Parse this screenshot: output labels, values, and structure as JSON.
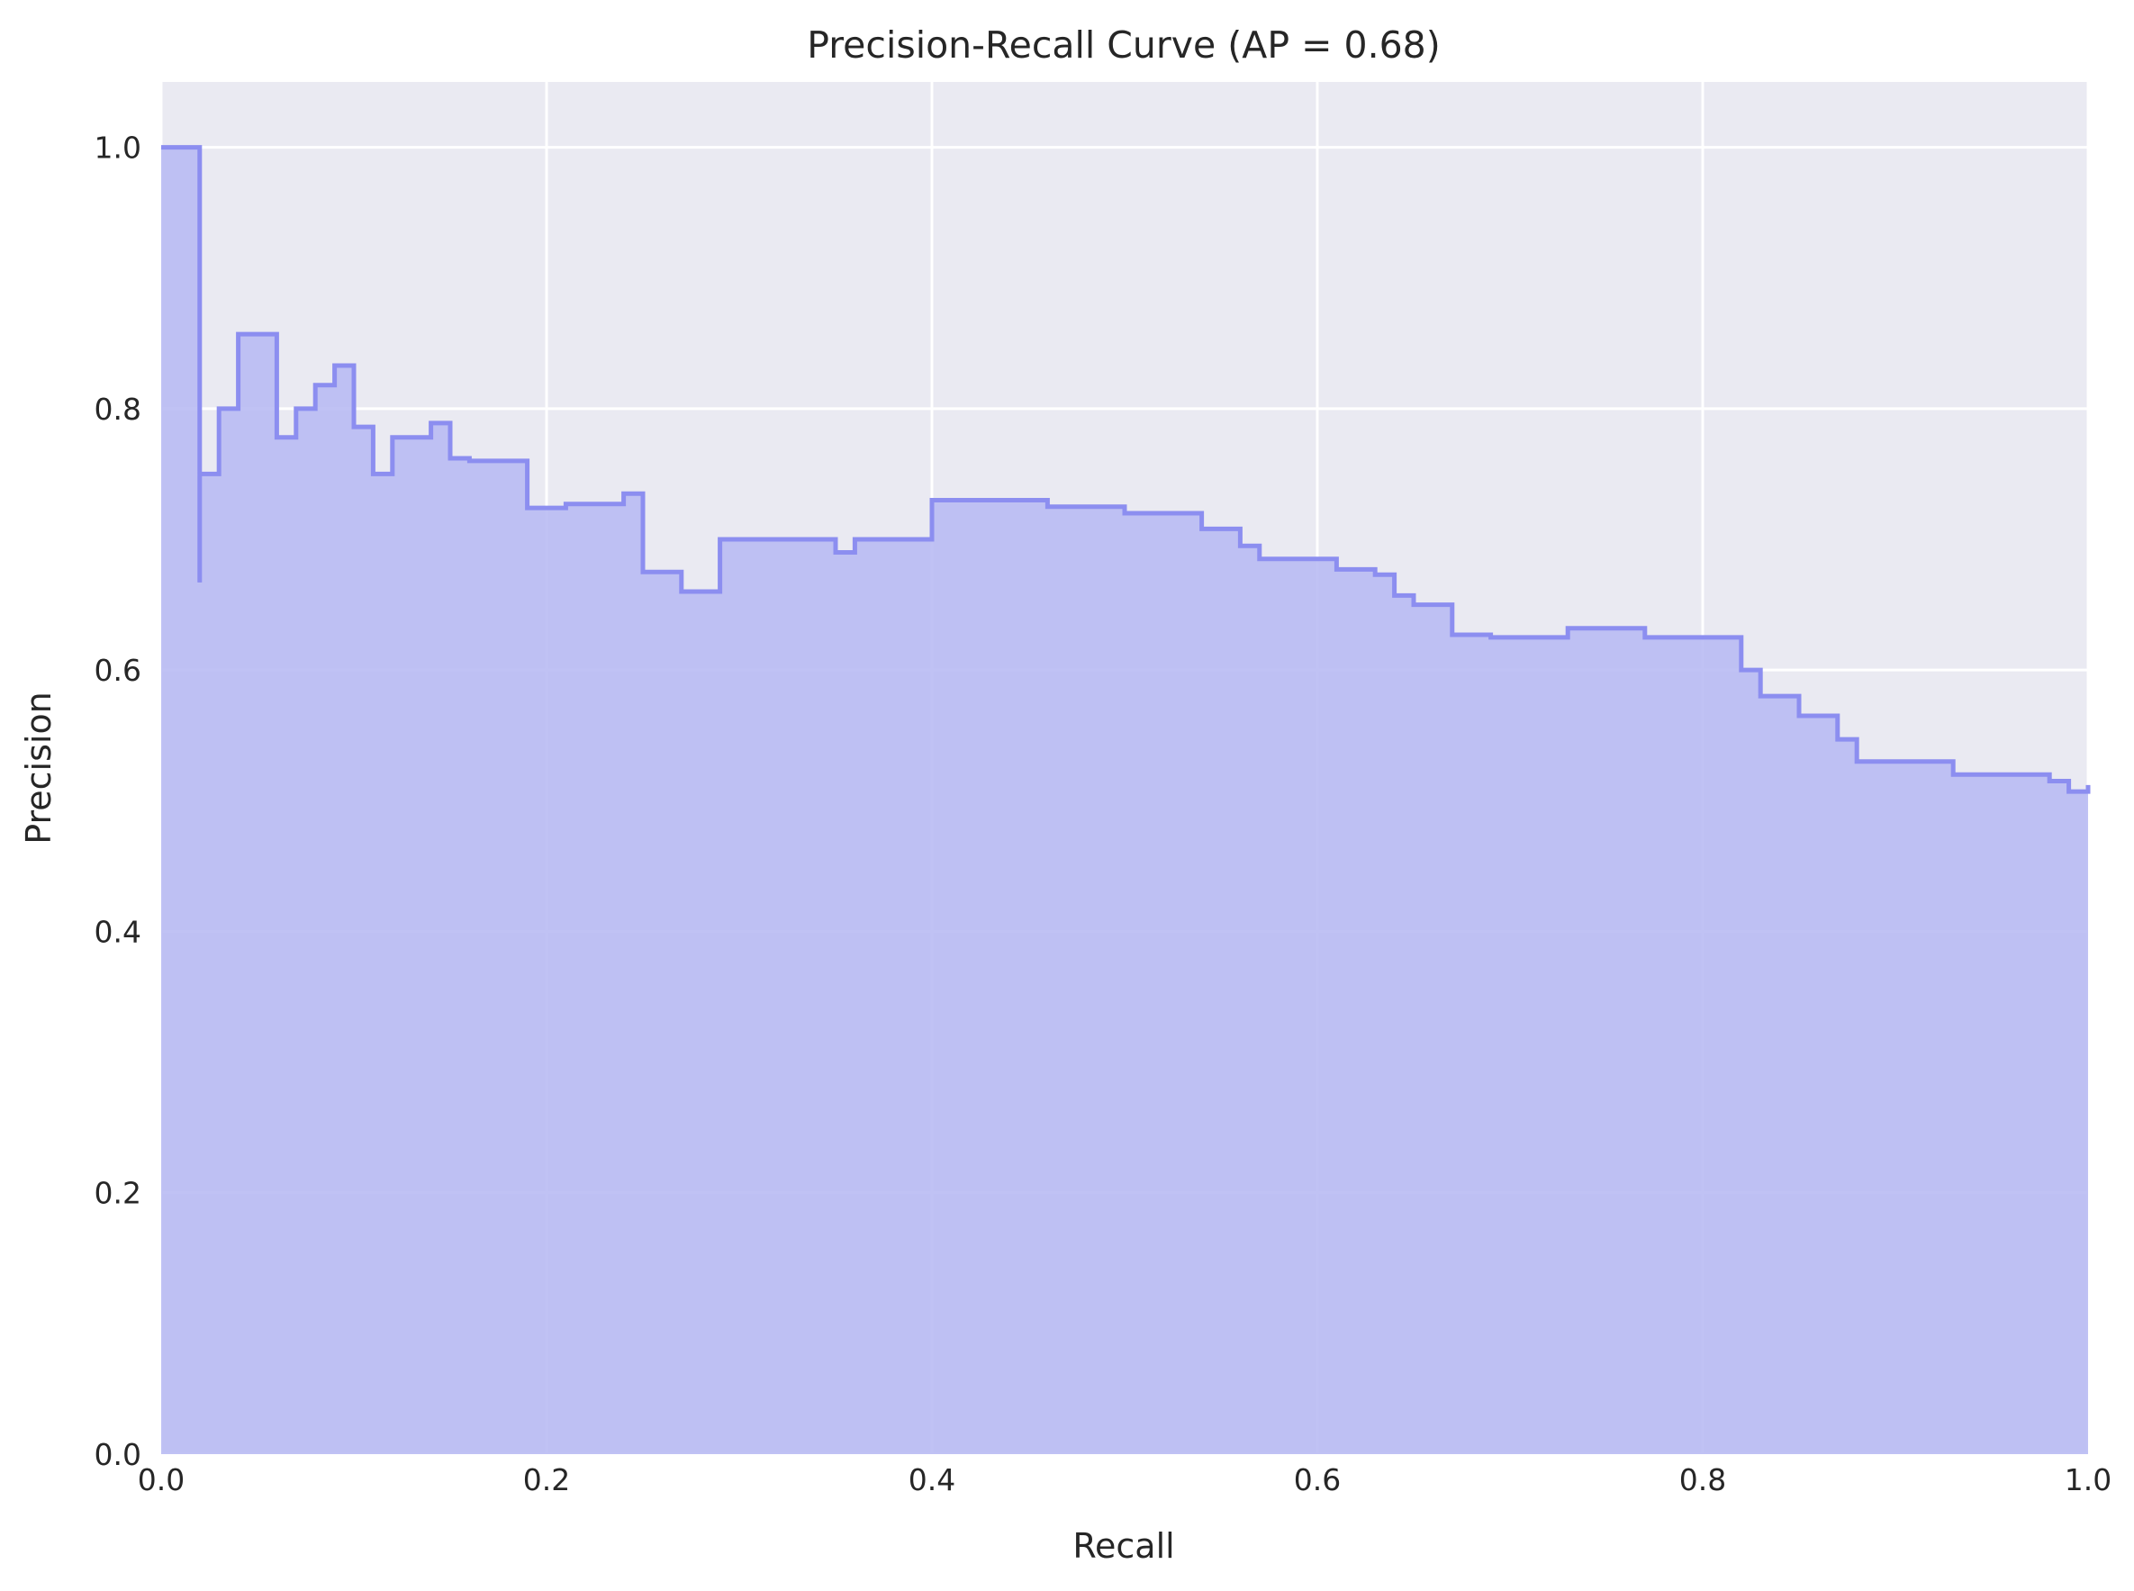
{
  "chart_data": {
    "type": "area",
    "title": "Precision-Recall Curve (AP = 0.68)",
    "xlabel": "Recall",
    "ylabel": "Precision",
    "xlim": [
      0.0,
      1.0
    ],
    "ylim": [
      0.0,
      1.05
    ],
    "grid": true,
    "x_ticks": [
      "0.0",
      "0.2",
      "0.4",
      "0.6",
      "0.8",
      "1.0"
    ],
    "y_ticks": [
      "0.0",
      "0.2",
      "0.4",
      "0.6",
      "0.8",
      "1.0"
    ],
    "step": "post",
    "colors": {
      "background": "#eaeaf2",
      "fill": "#b9bbf3",
      "line": "#8c8ef0",
      "grid": "#ffffff"
    },
    "recall": [
      0.0,
      0.02,
      0.02,
      0.02,
      0.03,
      0.04,
      0.06,
      0.07,
      0.08,
      0.09,
      0.1,
      0.11,
      0.12,
      0.14,
      0.15,
      0.16,
      0.19,
      0.21,
      0.24,
      0.25,
      0.27,
      0.27,
      0.29,
      0.35,
      0.36,
      0.4,
      0.46,
      0.5,
      0.51,
      0.54,
      0.56,
      0.57,
      0.61,
      0.63,
      0.64,
      0.65,
      0.67,
      0.69,
      0.73,
      0.77,
      0.8,
      0.82,
      0.83,
      0.85,
      0.87,
      0.88,
      0.93,
      0.93,
      0.96,
      0.98,
      0.99,
      1.0
    ],
    "precision": [
      1.0,
      1.0,
      0.667,
      0.75,
      0.8,
      0.857,
      0.778,
      0.8,
      0.818,
      0.833,
      0.786,
      0.75,
      0.778,
      0.789,
      0.762,
      0.76,
      0.724,
      0.727,
      0.735,
      0.675,
      0.675,
      0.66,
      0.7,
      0.69,
      0.7,
      0.73,
      0.725,
      0.72,
      0.72,
      0.708,
      0.695,
      0.685,
      0.677,
      0.673,
      0.657,
      0.65,
      0.627,
      0.625,
      0.632,
      0.625,
      0.625,
      0.6,
      0.58,
      0.565,
      0.547,
      0.53,
      0.529,
      0.52,
      0.52,
      0.515,
      0.507,
      0.512
    ]
  }
}
